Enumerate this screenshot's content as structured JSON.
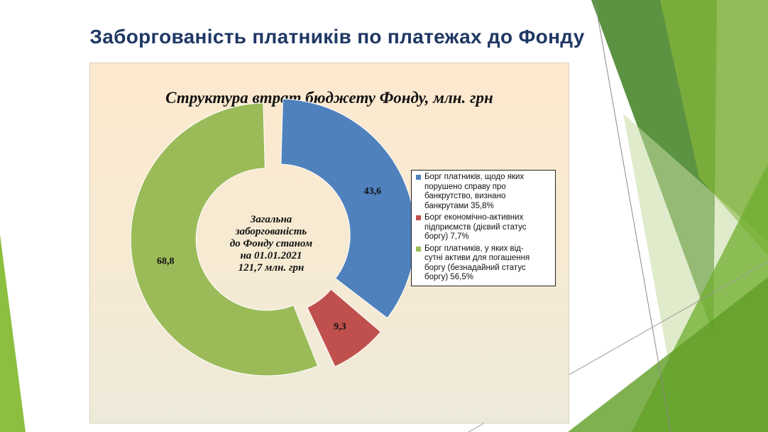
{
  "slide": {
    "title": "Заборгованість платників по платежах до Фонду"
  },
  "colors": {
    "blue": "#4f81bd",
    "red": "#c0504d",
    "green": "#9bbb59",
    "title": "#1f3864"
  },
  "chart_data": {
    "type": "pie",
    "variant": "donut-exploded",
    "title": "Структура втрат бюджету Фонду, млн. грн",
    "center_lines": [
      "Загальна",
      "заборгованість",
      "до Фонду станом",
      "на 01.01.2021",
      "121,7 млн. грн"
    ],
    "legend_position": "right",
    "slices": [
      {
        "label": "43,6",
        "value": 43.6,
        "color": "#4f81bd",
        "legend": "Борг платників, щодо яких\nпорушено справу про\nбанкрутство, визнано\nбанкрутами  35,8%"
      },
      {
        "label": "9,3",
        "value": 9.3,
        "color": "#c0504d",
        "legend": "Борг економічно-активних\nпідприємств (дієвий статус\nборгу) 7,7%"
      },
      {
        "label": "68,8",
        "value": 68.8,
        "color": "#9bbb59",
        "legend": "Борг платників, у яких від-\nсутні активи для погашення\nборгу (безнадайний статус\nборгу) 56,5%"
      }
    ]
  }
}
